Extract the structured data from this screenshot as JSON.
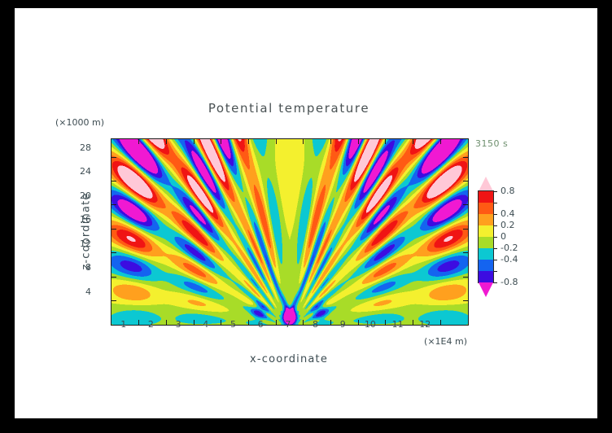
{
  "title": "Potential temperature",
  "time_label": "3150 s",
  "axes": {
    "x": {
      "label": "x-coordinate",
      "unit": "(×1E4 m)"
    },
    "z": {
      "label": "z-coordinate",
      "unit": "(×1000 m)"
    }
  },
  "chart_data": {
    "type": "heatmap",
    "title": "Potential temperature",
    "xlabel": "x-coordinate",
    "ylabel": "z-coordinate",
    "x_unit_note": "(×1E4 m)",
    "y_unit_note": "(×1000 m)",
    "time_annotation": "3150 s",
    "xlim": [
      0,
      13
    ],
    "ylim": [
      0,
      31
    ],
    "x_ticks": [
      1,
      2,
      3,
      4,
      5,
      6,
      7,
      8,
      9,
      10,
      11,
      12
    ],
    "y_ticks": [
      4,
      8,
      12,
      16,
      20,
      24,
      28
    ],
    "grid": false,
    "legend_position": "right-colorbar",
    "levels": [
      -0.8,
      -0.6,
      -0.4,
      -0.2,
      0,
      0.2,
      0.4,
      0.6,
      0.8
    ],
    "colors": [
      "#f019d2",
      "#3c0ce1",
      "#1464f0",
      "#0cc8d2",
      "#a8dc28",
      "#f4f02e",
      "#ffa01e",
      "#ff5a14",
      "#f01414",
      "#ffc8d7"
    ],
    "colorbar_tick_labels": [
      {
        "text": "0.8",
        "value": 0.8
      },
      {
        "text": "0.4",
        "value": 0.4
      },
      {
        "text": "0.2",
        "value": 0.2
      },
      {
        "text": "0",
        "value": 0.0
      },
      {
        "text": "-0.2",
        "value": -0.2
      },
      {
        "text": "-0.4",
        "value": -0.4
      },
      {
        "text": "-0.8",
        "value": -0.8
      }
    ],
    "field_model": {
      "source_x": 6.5,
      "z_offset": 0.8,
      "phase_cycles": 42,
      "phase_curvature": 0.04,
      "phase_offset": 1.2,
      "fan_amplitude": 1.35,
      "env_s_pow": 0.55,
      "env_c_pow": 0.45,
      "grow_base": 0.3,
      "grow_gain": 1.0,
      "grow_scale": 55,
      "zfac_base": 0.4,
      "zfac_gain": 0.75,
      "zfac_pow": 0.8,
      "mod_base": 0.78,
      "mod_gain": 0.38,
      "mod_k": 0.25,
      "mod_c": 3.0,
      "nearfield": 6,
      "bg_offset": -0.06,
      "bg_yellow_amp": 0.17,
      "bg_yellow_z": 23,
      "bg_yellow_zw": 9,
      "bg_yellow_xw": 5.5,
      "bg_bottom_amp": -0.08,
      "bg_bottom_zw": 2.2,
      "src_amp": -2.4,
      "src_xw": 2.0,
      "src_z": 1.3,
      "src_zw": 1.1,
      "flank_amp": -0.55,
      "flank_x": 11,
      "flank_xw": 3,
      "flank_z": 2.2,
      "flank_zw": 1.4,
      "v_amp": -0.5,
      "v_slope": 1.1,
      "v_z0": 1.5,
      "v_w": 1.0,
      "v_xr": 8
    }
  }
}
